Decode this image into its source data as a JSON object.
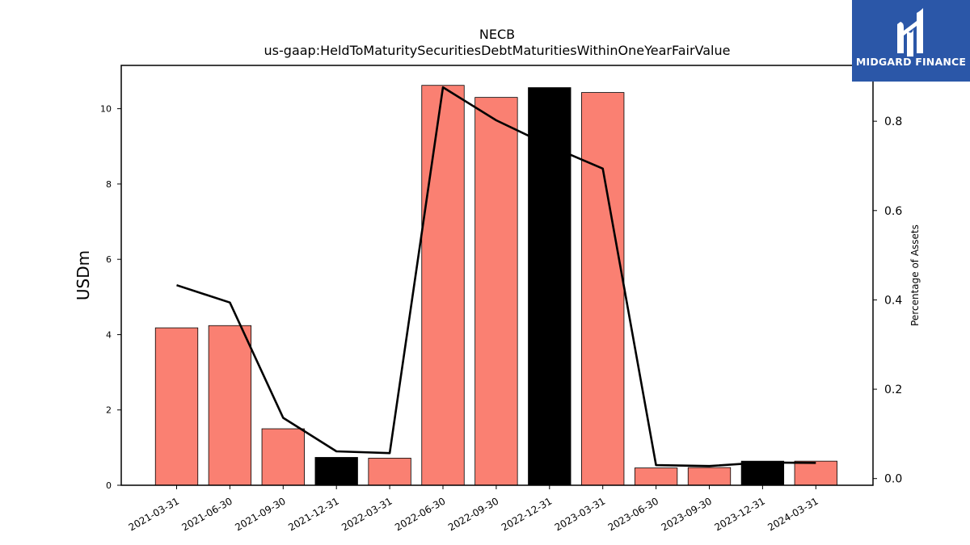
{
  "chart_data": {
    "type": "bar",
    "title": "NECB",
    "subtitle": "us-gaap:HeldToMaturitySecuritiesDebtMaturitiesWithinOneYearFairValue",
    "ylabel": "USDm",
    "y2label": "Percentage of Assets",
    "ylim": [
      0,
      11.15
    ],
    "y2lim": [
      -0.015,
      0.925
    ],
    "yticks": [
      0,
      2,
      4,
      6,
      8,
      10
    ],
    "y2ticks": [
      "0.0",
      "0.2",
      "0.4",
      "0.6",
      "0.8"
    ],
    "categories": [
      "2021-03-31",
      "2021-06-30",
      "2021-09-30",
      "2021-12-31",
      "2022-03-31",
      "2022-06-30",
      "2022-09-30",
      "2022-12-31",
      "2023-03-31",
      "2023-06-30",
      "2023-09-30",
      "2023-12-31",
      "2024-03-31"
    ],
    "series": [
      {
        "values": [
          4.18,
          4.24,
          1.5,
          0.74,
          0.72,
          10.62,
          10.3,
          10.56,
          10.43,
          0.46,
          0.47,
          0.64,
          0.64
        ],
        "colors": [
          "#fa8072",
          "#fa8072",
          "#fa8072",
          "#000000",
          "#fa8072",
          "#fa8072",
          "#fa8072",
          "#000000",
          "#fa8072",
          "#fa8072",
          "#fa8072",
          "#000000",
          "#fa8072"
        ]
      },
      {
        "axis": "right",
        "type": "line",
        "color": "#000000",
        "values": [
          0.433,
          0.394,
          0.136,
          0.061,
          0.057,
          0.876,
          0.802,
          0.745,
          0.694,
          0.03,
          0.028,
          0.036,
          0.035
        ]
      }
    ],
    "grid": false,
    "legend": "none"
  },
  "logo": {
    "text": "MIDGARD FINANCE",
    "color": "#2b57a8",
    "icon": "midgard-logo-icon"
  }
}
